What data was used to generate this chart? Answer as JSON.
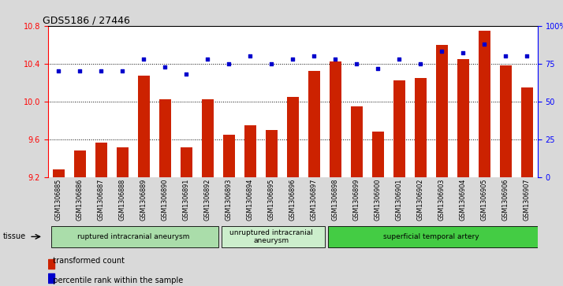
{
  "title": "GDS5186 / 27446",
  "samples": [
    "GSM1306885",
    "GSM1306886",
    "GSM1306887",
    "GSM1306888",
    "GSM1306889",
    "GSM1306890",
    "GSM1306891",
    "GSM1306892",
    "GSM1306893",
    "GSM1306894",
    "GSM1306895",
    "GSM1306896",
    "GSM1306897",
    "GSM1306898",
    "GSM1306899",
    "GSM1306900",
    "GSM1306901",
    "GSM1306902",
    "GSM1306903",
    "GSM1306904",
    "GSM1306905",
    "GSM1306906",
    "GSM1306907"
  ],
  "transformed_count": [
    9.28,
    9.48,
    9.57,
    9.52,
    10.27,
    10.02,
    9.52,
    10.02,
    9.65,
    9.75,
    9.7,
    10.05,
    10.32,
    10.42,
    9.95,
    9.68,
    10.22,
    10.25,
    10.6,
    10.45,
    10.75,
    10.38,
    10.15
  ],
  "percentile_rank": [
    70,
    70,
    70,
    70,
    78,
    73,
    68,
    78,
    75,
    80,
    75,
    78,
    80,
    78,
    75,
    72,
    78,
    75,
    83,
    82,
    88,
    80,
    80
  ],
  "ylim_left": [
    9.2,
    10.8
  ],
  "ylim_right": [
    0,
    100
  ],
  "yticks_left": [
    9.2,
    9.6,
    10.0,
    10.4,
    10.8
  ],
  "yticks_right": [
    0,
    25,
    50,
    75,
    100
  ],
  "bar_color": "#cc2200",
  "dot_color": "#0000cc",
  "background_color": "#d9d9d9",
  "plot_bg_color": "#ffffff",
  "groups": [
    {
      "label": "ruptured intracranial aneurysm",
      "start": 0,
      "end": 8,
      "color": "#aaddaa"
    },
    {
      "label": "unruptured intracranial\naneurysm",
      "start": 8,
      "end": 13,
      "color": "#cceecc"
    },
    {
      "label": "superficial temporal artery",
      "start": 13,
      "end": 23,
      "color": "#44cc44"
    }
  ],
  "tissue_label": "tissue",
  "legend_bar_label": "transformed count",
  "legend_dot_label": "percentile rank within the sample"
}
